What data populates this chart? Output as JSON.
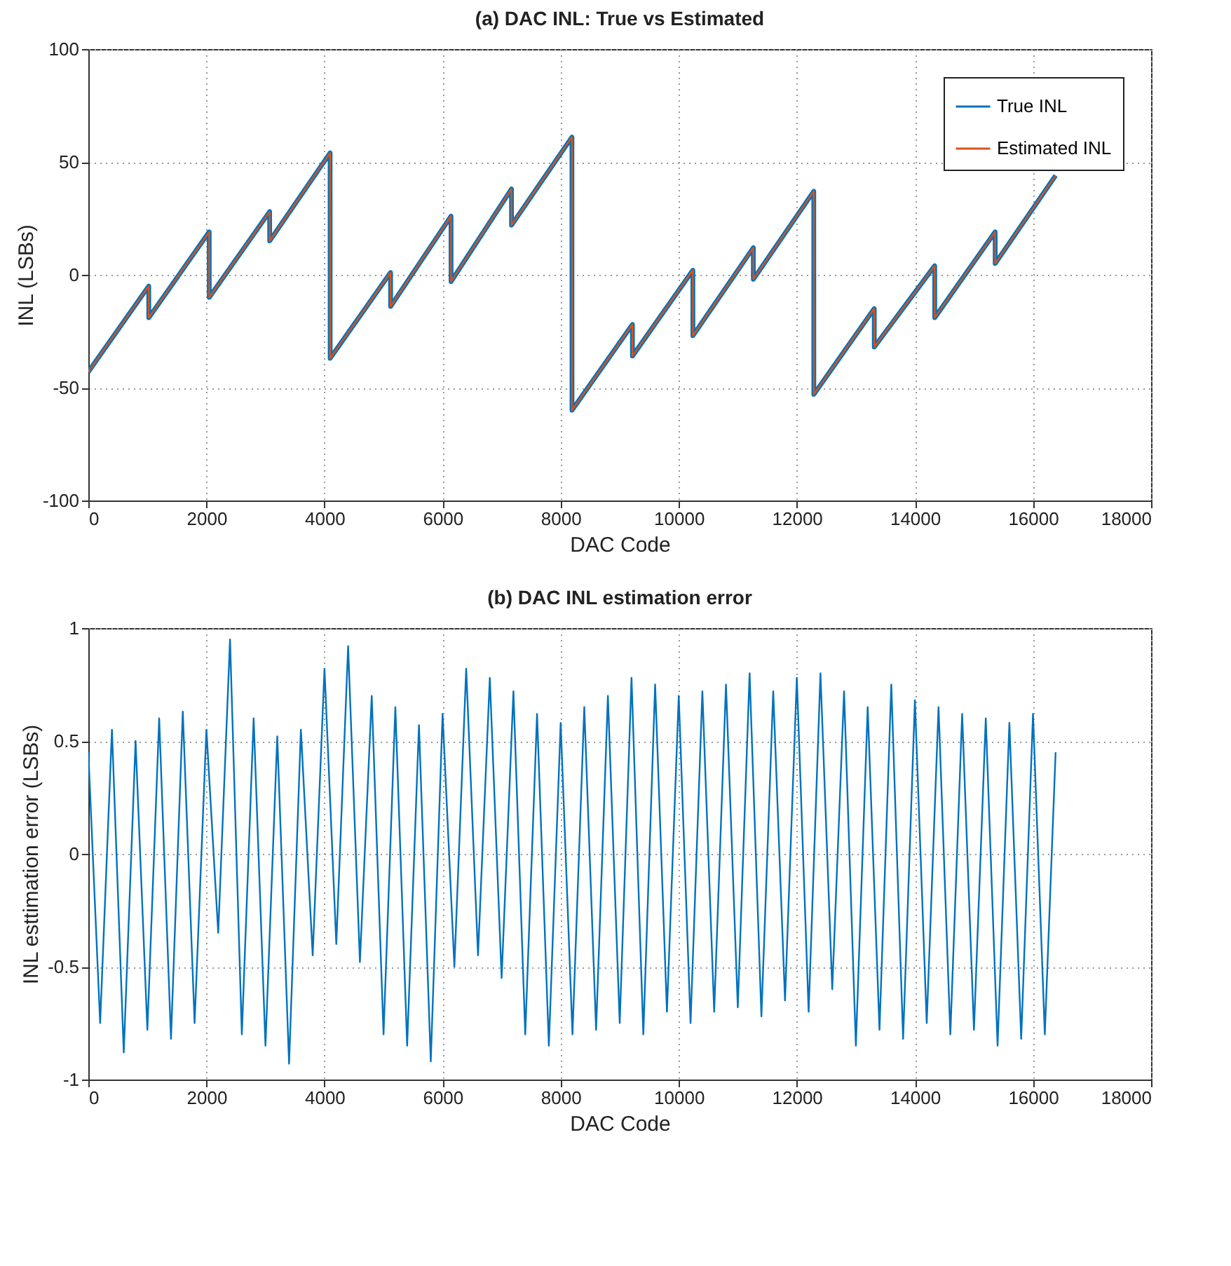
{
  "chart_data": [
    {
      "type": "line",
      "title": "(a) DAC INL: True vs Estimated",
      "xlabel": "DAC Code",
      "ylabel": "INL (LSBs)",
      "xlim": [
        0,
        18000
      ],
      "xticks": [
        0,
        2000,
        4000,
        6000,
        8000,
        10000,
        12000,
        14000,
        16000,
        18000
      ],
      "ylim": [
        -100,
        100
      ],
      "yticks": [
        -100,
        -50,
        0,
        50,
        100
      ],
      "grid": true,
      "legend": "top right",
      "line_style": "solid",
      "x": [
        0,
        1023,
        1024,
        2047,
        2048,
        3071,
        3072,
        4095,
        4096,
        5119,
        5120,
        6143,
        6144,
        7167,
        7168,
        8191,
        8192,
        9215,
        9216,
        10239,
        10240,
        11263,
        11264,
        12287,
        12288,
        13311,
        13312,
        14335,
        14336,
        15359,
        15360,
        16383
      ],
      "series": [
        {
          "name": "True INL",
          "color": "#0072bd",
          "values": [
            -43,
            -5,
            -19,
            19,
            -10,
            28,
            15,
            54,
            -37,
            1,
            -14,
            26,
            -3,
            38,
            22,
            61,
            -60,
            -22,
            -36,
            2,
            -27,
            12,
            -2,
            37,
            -53,
            -15,
            -32,
            4,
            -19,
            19,
            5,
            44
          ]
        },
        {
          "name": "Estimated INL",
          "color": "#d95319",
          "values": [
            -43,
            -5,
            -19,
            19,
            -10,
            28,
            15,
            54,
            -37,
            1,
            -14,
            26,
            -3,
            38,
            22,
            61,
            -60,
            -22,
            -36,
            2,
            -27,
            12,
            -2,
            37,
            -53,
            -15,
            -32,
            4,
            -19,
            19,
            5,
            44
          ]
        }
      ]
    },
    {
      "type": "line",
      "title": "(b) DAC INL estimation error",
      "xlabel": "DAC Code",
      "ylabel": "INL esttimation error (LSBs)",
      "xlim": [
        0,
        18000
      ],
      "xticks": [
        0,
        2000,
        4000,
        6000,
        8000,
        10000,
        12000,
        14000,
        16000,
        18000
      ],
      "ylim": [
        -1,
        1
      ],
      "yticks": [
        -1,
        -0.5,
        0,
        0.5,
        1
      ],
      "grid": true,
      "line_style": "solid",
      "x": [
        0,
        200,
        400,
        600,
        800,
        1000,
        1200,
        1400,
        1600,
        1800,
        2000,
        2200,
        2400,
        2600,
        2800,
        3000,
        3200,
        3400,
        3600,
        3800,
        4000,
        4200,
        4400,
        4600,
        4800,
        5000,
        5200,
        5400,
        5600,
        5800,
        6000,
        6200,
        6400,
        6600,
        6800,
        7000,
        7200,
        7400,
        7600,
        7800,
        8000,
        8200,
        8400,
        8600,
        8800,
        9000,
        9200,
        9400,
        9600,
        9800,
        10000,
        10200,
        10400,
        10600,
        10800,
        11000,
        11200,
        11400,
        11600,
        11800,
        12000,
        12200,
        12400,
        12600,
        12800,
        13000,
        13200,
        13400,
        13600,
        13800,
        14000,
        14200,
        14400,
        14600,
        14800,
        15000,
        15200,
        15400,
        15600,
        15800,
        16000,
        16200,
        16383
      ],
      "series": [
        {
          "color": "#0072bd",
          "values": [
            0.45,
            -0.75,
            0.55,
            -0.88,
            0.5,
            -0.78,
            0.6,
            -0.82,
            0.63,
            -0.75,
            0.55,
            -0.35,
            0.95,
            -0.8,
            0.6,
            -0.85,
            0.52,
            -0.93,
            0.55,
            -0.45,
            0.82,
            -0.4,
            0.92,
            -0.48,
            0.7,
            -0.8,
            0.65,
            -0.85,
            0.57,
            -0.92,
            0.62,
            -0.5,
            0.82,
            -0.45,
            0.78,
            -0.55,
            0.72,
            -0.8,
            0.62,
            -0.85,
            0.58,
            -0.8,
            0.65,
            -0.78,
            0.7,
            -0.75,
            0.78,
            -0.8,
            0.75,
            -0.7,
            0.7,
            -0.75,
            0.72,
            -0.7,
            0.75,
            -0.68,
            0.8,
            -0.72,
            0.72,
            -0.65,
            0.78,
            -0.7,
            0.8,
            -0.6,
            0.72,
            -0.85,
            0.65,
            -0.78,
            0.75,
            -0.82,
            0.68,
            -0.75,
            0.65,
            -0.8,
            0.62,
            -0.78,
            0.6,
            -0.85,
            0.58,
            -0.82,
            0.62,
            -0.8,
            0.45
          ]
        }
      ]
    }
  ]
}
